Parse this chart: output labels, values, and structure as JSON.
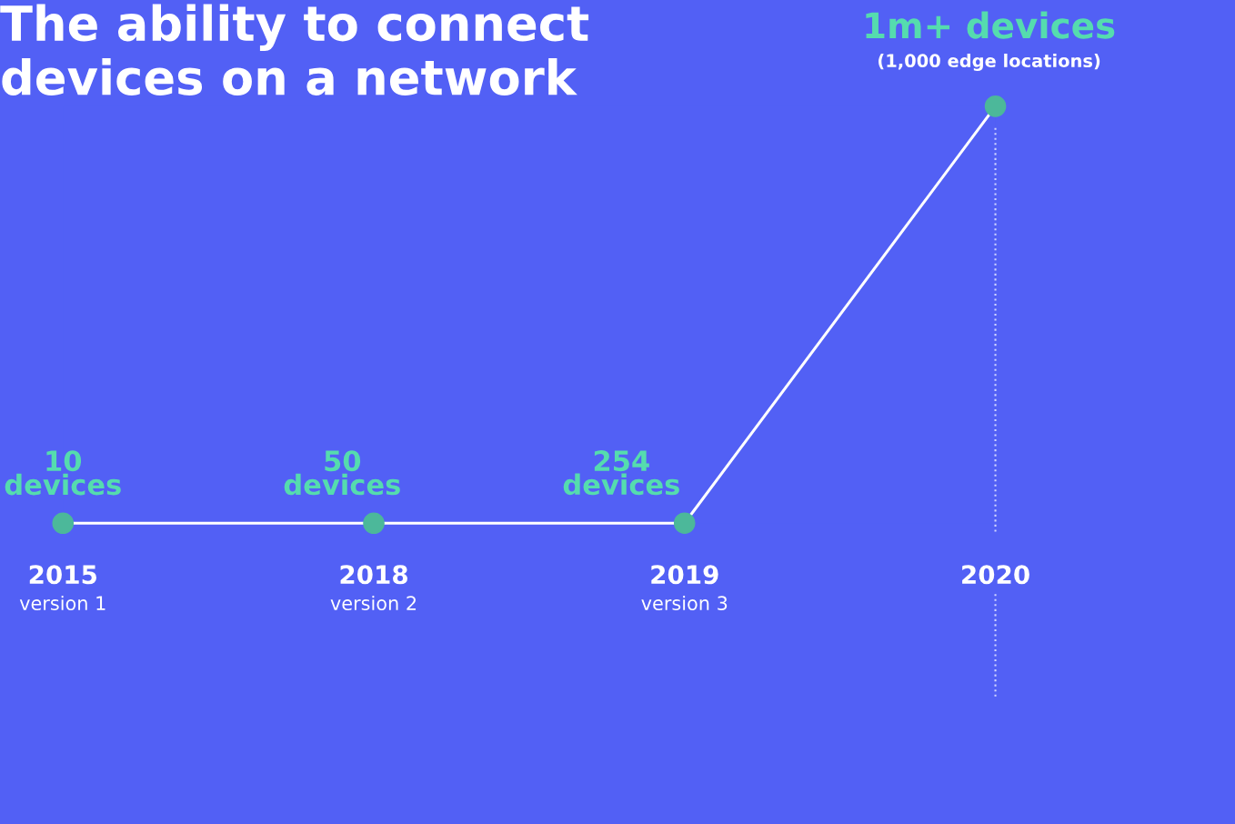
{
  "chart_data": {
    "type": "line",
    "title": "The ability to connect\ndevices on a network",
    "categories": [
      "2015\nversion 1",
      "2018\nversion 2",
      "2019\nversion 3",
      "2020"
    ],
    "series": [
      {
        "color": "#ffffff",
        "values": [
          10,
          50,
          254,
          1000000
        ],
        "value_labels": [
          "10\ndevices",
          "50\ndevices",
          "254\ndevices",
          "1m+ devices"
        ]
      }
    ],
    "marker": "circle",
    "annotations": [
      {
        "text": "(1,000 edge locations)",
        "x": "2020",
        "y": 1000000
      }
    ],
    "ref_lines": [
      {
        "axis": "x",
        "value": "2020",
        "color": "#d0d4ff",
        "line_style": "dotted"
      }
    ],
    "legend": false
  }
}
